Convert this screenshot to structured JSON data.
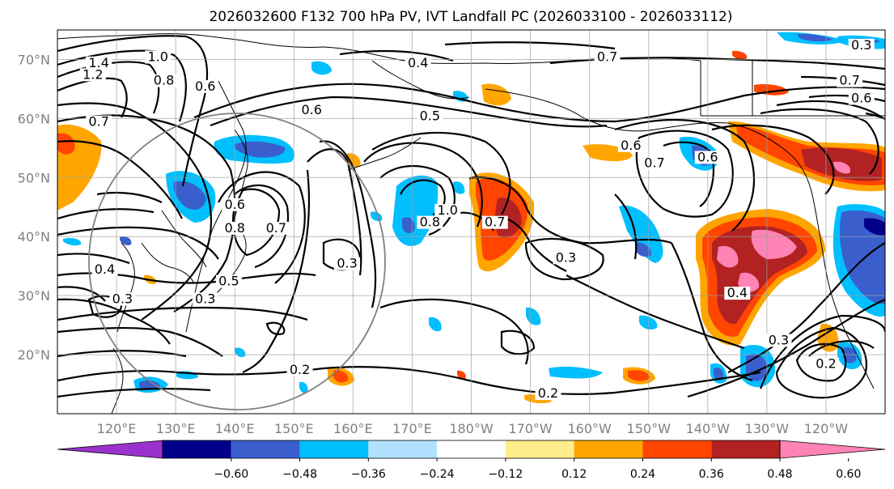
{
  "title": "2026032600 F132 700 hPa PV, IVT Landfall PC (2026033100 - 2026033112)",
  "map": {
    "lat_labels": [
      "70°N",
      "60°N",
      "50°N",
      "40°N",
      "30°N",
      "20°N"
    ],
    "lat_values": [
      70,
      60,
      50,
      40,
      30,
      20
    ],
    "lon_labels": [
      "120°E",
      "130°E",
      "140°E",
      "150°E",
      "160°E",
      "170°E",
      "180°W",
      "170°W",
      "160°W",
      "150°W",
      "140°W",
      "130°W",
      "120°W"
    ],
    "lon_values": [
      120,
      130,
      140,
      150,
      160,
      170,
      180,
      190,
      200,
      210,
      220,
      230,
      240
    ],
    "lon_range": [
      110,
      250
    ],
    "lat_range": [
      10,
      75
    ],
    "contour_labels": [
      {
        "text": "1.4",
        "lon": 117,
        "lat": 69
      },
      {
        "text": "1.2",
        "lon": 116,
        "lat": 67
      },
      {
        "text": "1.0",
        "lon": 127,
        "lat": 70
      },
      {
        "text": "0.8",
        "lon": 128,
        "lat": 66
      },
      {
        "text": "0.6",
        "lon": 135,
        "lat": 65
      },
      {
        "text": "0.7",
        "lon": 117,
        "lat": 59
      },
      {
        "text": "0.6",
        "lon": 153,
        "lat": 61
      },
      {
        "text": "0.5",
        "lon": 173,
        "lat": 60
      },
      {
        "text": "0.4",
        "lon": 171,
        "lat": 69
      },
      {
        "text": "0.7",
        "lon": 203,
        "lat": 70
      },
      {
        "text": "0.7",
        "lon": 211,
        "lat": 52
      },
      {
        "text": "0.6",
        "lon": 220,
        "lat": 53
      },
      {
        "text": "0.6",
        "lon": 207,
        "lat": 55
      },
      {
        "text": "0.7",
        "lon": 244,
        "lat": 66
      },
      {
        "text": "0.6",
        "lon": 246,
        "lat": 63
      },
      {
        "text": "0.3",
        "lon": 246,
        "lat": 72
      },
      {
        "text": "0.6",
        "lon": 140,
        "lat": 45
      },
      {
        "text": "0.8",
        "lon": 140,
        "lat": 41
      },
      {
        "text": "0.7",
        "lon": 147,
        "lat": 41
      },
      {
        "text": "0.8",
        "lon": 173,
        "lat": 42
      },
      {
        "text": "1.0",
        "lon": 176,
        "lat": 44
      },
      {
        "text": "0.7",
        "lon": 184,
        "lat": 42
      },
      {
        "text": "0.3",
        "lon": 159,
        "lat": 35
      },
      {
        "text": "0.3",
        "lon": 196,
        "lat": 36
      },
      {
        "text": "0.4",
        "lon": 118,
        "lat": 34
      },
      {
        "text": "0.5",
        "lon": 139,
        "lat": 32
      },
      {
        "text": "0.3",
        "lon": 135,
        "lat": 29
      },
      {
        "text": "0.3",
        "lon": 121,
        "lat": 29
      },
      {
        "text": "0.2",
        "lon": 151,
        "lat": 17
      },
      {
        "text": "0.2",
        "lon": 193,
        "lat": 13
      },
      {
        "text": "0.4",
        "lon": 225,
        "lat": 30
      },
      {
        "text": "0.3",
        "lon": 232,
        "lat": 22
      },
      {
        "text": "0.2",
        "lon": 240,
        "lat": 18
      }
    ]
  },
  "colorbar": {
    "labels": [
      "−0.60",
      "−0.48",
      "−0.36",
      "−0.24",
      "−0.12",
      "0.12",
      "0.24",
      "0.36",
      "0.48",
      "0.60"
    ],
    "colors": [
      "#9932cc",
      "#00008b",
      "#3a5fcd",
      "#00bfff",
      "#b0e2ff",
      "#ffffff",
      "#ffec8b",
      "#ffa500",
      "#ff4500",
      "#b22222",
      "#ff83b4"
    ]
  }
}
